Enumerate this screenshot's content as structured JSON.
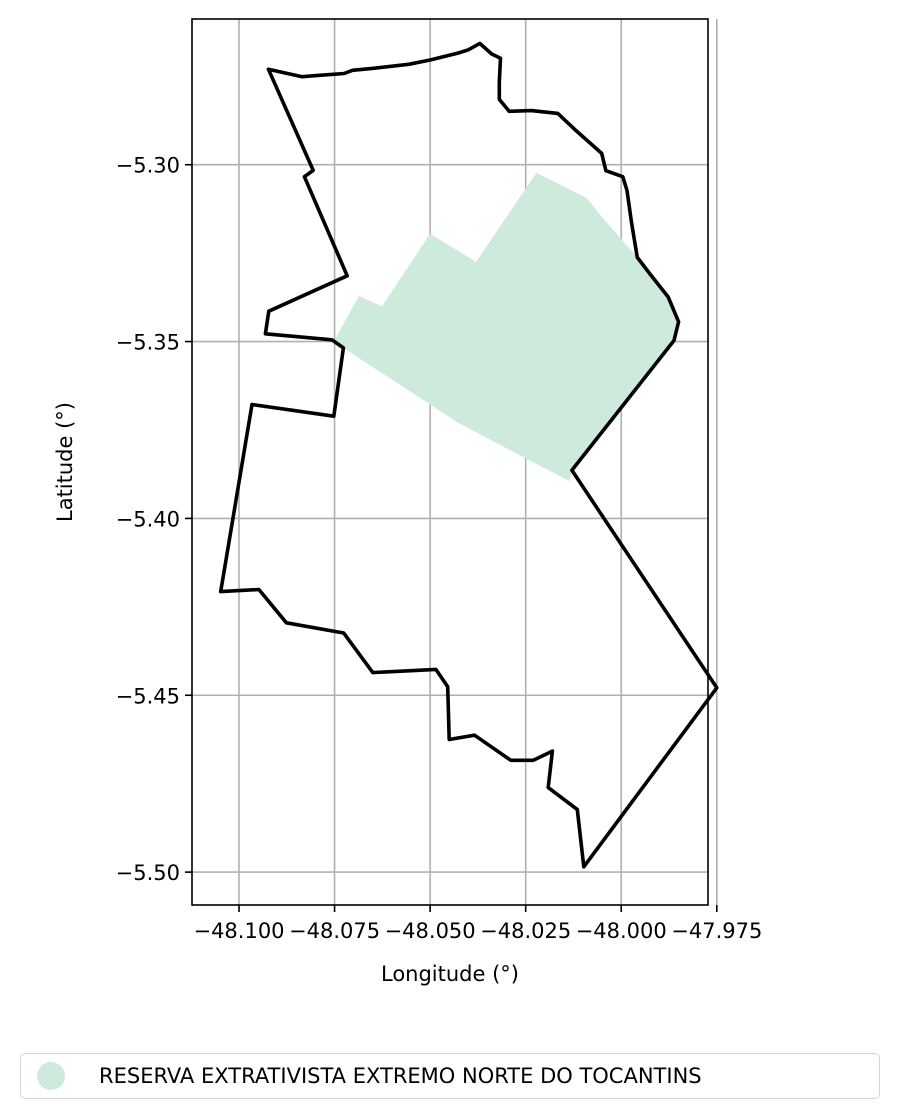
{
  "chart_data": {
    "type": "map",
    "xlabel": "Longitude (°)",
    "ylabel": "Latitude (°)",
    "xlim": [
      -48.1123,
      -47.9773
    ],
    "ylim": [
      -5.5093,
      -5.2588
    ],
    "x_ticks": [
      -48.1,
      -48.075,
      -48.05,
      -48.025,
      -48.0,
      -47.975
    ],
    "x_tick_labels": [
      "−48.100",
      "−48.075",
      "−48.050",
      "−48.025",
      "−48.000",
      "−47.975"
    ],
    "y_ticks": [
      -5.3,
      -5.35,
      -5.4,
      -5.45,
      -5.5
    ],
    "y_tick_labels": [
      "−5.30",
      "−5.35",
      "−5.40",
      "−5.45",
      "−5.50"
    ],
    "grid": true,
    "legend_position": "bottom-center",
    "colors": {
      "reserve_fill": "#cdeadc",
      "boundary": "#000000",
      "grid": "#b0b0b0"
    },
    "boundary": [
      [
        -48.0923,
        -5.273
      ],
      [
        -48.0835,
        -5.2751
      ],
      [
        -48.0785,
        -5.2747
      ],
      [
        -48.0725,
        -5.2742
      ],
      [
        -48.0703,
        -5.2733
      ],
      [
        -48.0645,
        -5.2727
      ],
      [
        -48.0556,
        -5.2716
      ],
      [
        -48.05,
        -5.2704
      ],
      [
        -48.0426,
        -5.2684
      ],
      [
        -48.04,
        -5.2675
      ],
      [
        -48.037,
        -5.2657
      ],
      [
        -48.0339,
        -5.2687
      ],
      [
        -48.0316,
        -5.2699
      ],
      [
        -48.0319,
        -5.2767
      ],
      [
        -48.0319,
        -5.2815
      ],
      [
        -48.0293,
        -5.2849
      ],
      [
        -48.0235,
        -5.2847
      ],
      [
        -48.0166,
        -5.2855
      ],
      [
        -48.0119,
        -5.2903
      ],
      [
        -48.0051,
        -5.2968
      ],
      [
        -48.004,
        -5.3017
      ],
      [
        -47.9996,
        -5.3034
      ],
      [
        -47.9985,
        -5.3073
      ],
      [
        -47.9973,
        -5.3165
      ],
      [
        -47.9958,
        -5.3262
      ],
      [
        -47.9924,
        -5.331
      ],
      [
        -47.9877,
        -5.3374
      ],
      [
        -47.985,
        -5.3444
      ],
      [
        -47.9862,
        -5.3497
      ],
      [
        -48.0129,
        -5.3864
      ],
      [
        -47.975,
        -5.4479
      ],
      [
        -48.0098,
        -5.4985
      ],
      [
        -48.0115,
        -5.4823
      ],
      [
        -48.0191,
        -5.4761
      ],
      [
        -48.018,
        -5.4658
      ],
      [
        -48.023,
        -5.4684
      ],
      [
        -48.0289,
        -5.4684
      ],
      [
        -48.0384,
        -5.4613
      ],
      [
        -48.045,
        -5.4625
      ],
      [
        -48.0454,
        -5.4476
      ],
      [
        -48.0485,
        -5.4427
      ],
      [
        -48.065,
        -5.4436
      ],
      [
        -48.0726,
        -5.4324
      ],
      [
        -48.0876,
        -5.4295
      ],
      [
        -48.0948,
        -5.4201
      ],
      [
        -48.1048,
        -5.4207
      ],
      [
        -48.0966,
        -5.3678
      ],
      [
        -48.0752,
        -5.3711
      ],
      [
        -48.0727,
        -5.3518
      ],
      [
        -48.0757,
        -5.3495
      ],
      [
        -48.0931,
        -5.3478
      ],
      [
        -48.0922,
        -5.3414
      ],
      [
        -48.0717,
        -5.3314
      ],
      [
        -48.0829,
        -5.3034
      ],
      [
        -48.0806,
        -5.3016
      ],
      [
        -48.0923,
        -5.273
      ]
    ],
    "reserve_polygon": [
      [
        -48.0752,
        -5.35
      ],
      [
        -48.0686,
        -5.3371
      ],
      [
        -48.0626,
        -5.34
      ],
      [
        -48.05,
        -5.3195
      ],
      [
        -48.038,
        -5.3275
      ],
      [
        -48.0222,
        -5.3023
      ],
      [
        -48.009,
        -5.3094
      ],
      [
        -48.0045,
        -5.3155
      ],
      [
        -47.9958,
        -5.3262
      ],
      [
        -47.9924,
        -5.331
      ],
      [
        -47.9877,
        -5.3374
      ],
      [
        -47.985,
        -5.3444
      ],
      [
        -47.9862,
        -5.3497
      ],
      [
        -48.0129,
        -5.3864
      ],
      [
        -48.0135,
        -5.3895
      ],
      [
        -48.0426,
        -5.373
      ],
      [
        -48.0727,
        -5.3518
      ],
      [
        -48.0752,
        -5.35
      ]
    ],
    "series": [
      {
        "name": "RESERVA EXTRATIVISTA EXTREMO NORTE DO TOCANTINS",
        "color": "#cdeadc"
      }
    ]
  }
}
